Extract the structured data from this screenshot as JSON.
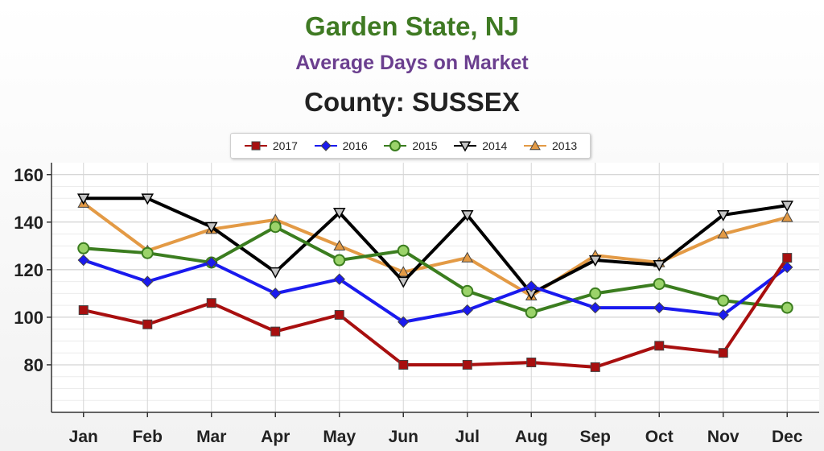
{
  "titles": {
    "main": "Garden State, NJ",
    "sub": "Average Days on Market",
    "county": "County: SUSSEX"
  },
  "colors": {
    "title_main": "#3f7a23",
    "title_sub": "#6b3f8f"
  },
  "chart_data": {
    "type": "line",
    "title": "Garden State, NJ",
    "subtitle": "Average Days on Market",
    "caption": "County: SUSSEX",
    "xlabel": "",
    "ylabel": "",
    "categories": [
      "Jan",
      "Feb",
      "Mar",
      "Apr",
      "May",
      "Jun",
      "Jul",
      "Aug",
      "Sep",
      "Oct",
      "Nov",
      "Dec"
    ],
    "ylim": [
      60,
      165
    ],
    "yticks": [
      80,
      100,
      120,
      140,
      160
    ],
    "grid": true,
    "legend_position": "top-center",
    "series": [
      {
        "name": "2017",
        "color": "#a80f0f",
        "marker": "square",
        "values": [
          103,
          97,
          106,
          94,
          101,
          80,
          80,
          81,
          79,
          88,
          85,
          125
        ]
      },
      {
        "name": "2016",
        "color": "#1a1aee",
        "marker": "diamond",
        "values": [
          124,
          115,
          123,
          110,
          116,
          98,
          103,
          113,
          104,
          104,
          101,
          121
        ]
      },
      {
        "name": "2015",
        "color": "#3b7d1f",
        "marker": "circle",
        "values": [
          129,
          127,
          123,
          138,
          124,
          128,
          111,
          102,
          110,
          114,
          107,
          104
        ]
      },
      {
        "name": "2014",
        "color": "#000000",
        "marker": "triangle-down",
        "values": [
          150,
          150,
          138,
          119,
          144,
          115,
          143,
          110,
          124,
          122,
          143,
          147
        ]
      },
      {
        "name": "2013",
        "color": "#e39a45",
        "marker": "triangle-up",
        "values": [
          148,
          128,
          137,
          141,
          130,
          119,
          125,
          109,
          126,
          123,
          135,
          142
        ]
      }
    ]
  }
}
